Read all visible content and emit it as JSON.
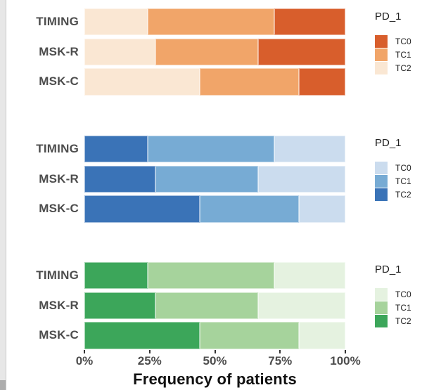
{
  "figure": {
    "xlabel": "Frequency of patients",
    "x_ticks": [
      {
        "label": "0%",
        "value": 0
      },
      {
        "label": "25%",
        "value": 25
      },
      {
        "label": "50%",
        "value": 50
      },
      {
        "label": "75%",
        "value": 75
      },
      {
        "label": "100%",
        "value": 100
      }
    ],
    "categories": [
      "TIMING",
      "MSK-R",
      "MSK-C"
    ],
    "legend_title": "PD_1",
    "background": "#ffffff",
    "gutter_color": "#e7e7e7",
    "tick_label_color": "#4d4d4d",
    "category_label_color": "#4d4d4d"
  },
  "chart_data": [
    {
      "id": "orange",
      "type": "bar",
      "subtype": "stacked-horizontal-percent",
      "categories": [
        "TIMING",
        "MSK-R",
        "MSK-C"
      ],
      "xlim": [
        0,
        100
      ],
      "x_unit": "%",
      "stack_order_left_to_right": [
        "TC2",
        "TC1",
        "TC0"
      ],
      "series": [
        {
          "name": "TC2",
          "color": "#fae7d3",
          "values": [
            24.3,
            27.2,
            44.2
          ]
        },
        {
          "name": "TC1",
          "color": "#f1a569",
          "values": [
            48.5,
            39.4,
            38.1
          ]
        },
        {
          "name": "TC0",
          "color": "#d85e2c",
          "values": [
            27.2,
            33.4,
            17.7
          ]
        }
      ],
      "legend": {
        "title": "PD_1",
        "entries": [
          {
            "label": "TC0",
            "color": "#d85e2c"
          },
          {
            "label": "TC1",
            "color": "#f1a569"
          },
          {
            "label": "TC2",
            "color": "#fae7d3"
          }
        ]
      }
    },
    {
      "id": "blue",
      "type": "bar",
      "subtype": "stacked-horizontal-percent",
      "categories": [
        "TIMING",
        "MSK-R",
        "MSK-C"
      ],
      "xlim": [
        0,
        100
      ],
      "x_unit": "%",
      "stack_order_left_to_right": [
        "TC2",
        "TC1",
        "TC0"
      ],
      "series": [
        {
          "name": "TC2",
          "color": "#3a73b7",
          "values": [
            24.3,
            27.2,
            44.2
          ]
        },
        {
          "name": "TC1",
          "color": "#77abd4",
          "values": [
            48.5,
            39.4,
            38.1
          ]
        },
        {
          "name": "TC0",
          "color": "#cbdcee",
          "values": [
            27.2,
            33.4,
            17.7
          ]
        }
      ],
      "legend": {
        "title": "PD_1",
        "entries": [
          {
            "label": "TC0",
            "color": "#cbdcee"
          },
          {
            "label": "TC1",
            "color": "#77abd4"
          },
          {
            "label": "TC2",
            "color": "#3a73b7"
          }
        ]
      }
    },
    {
      "id": "green",
      "type": "bar",
      "subtype": "stacked-horizontal-percent",
      "categories": [
        "TIMING",
        "MSK-R",
        "MSK-C"
      ],
      "xlim": [
        0,
        100
      ],
      "x_unit": "%",
      "stack_order_left_to_right": [
        "TC2",
        "TC1",
        "TC0"
      ],
      "series": [
        {
          "name": "TC2",
          "color": "#3ca65a",
          "values": [
            24.3,
            27.2,
            44.2
          ]
        },
        {
          "name": "TC1",
          "color": "#a6d39c",
          "values": [
            48.5,
            39.4,
            38.1
          ]
        },
        {
          "name": "TC0",
          "color": "#e5f2e0",
          "values": [
            27.2,
            33.4,
            17.7
          ]
        }
      ],
      "legend": {
        "title": "PD_1",
        "entries": [
          {
            "label": "TC0",
            "color": "#e5f2e0"
          },
          {
            "label": "TC1",
            "color": "#a6d39c"
          },
          {
            "label": "TC2",
            "color": "#3ca65a"
          }
        ]
      }
    }
  ]
}
